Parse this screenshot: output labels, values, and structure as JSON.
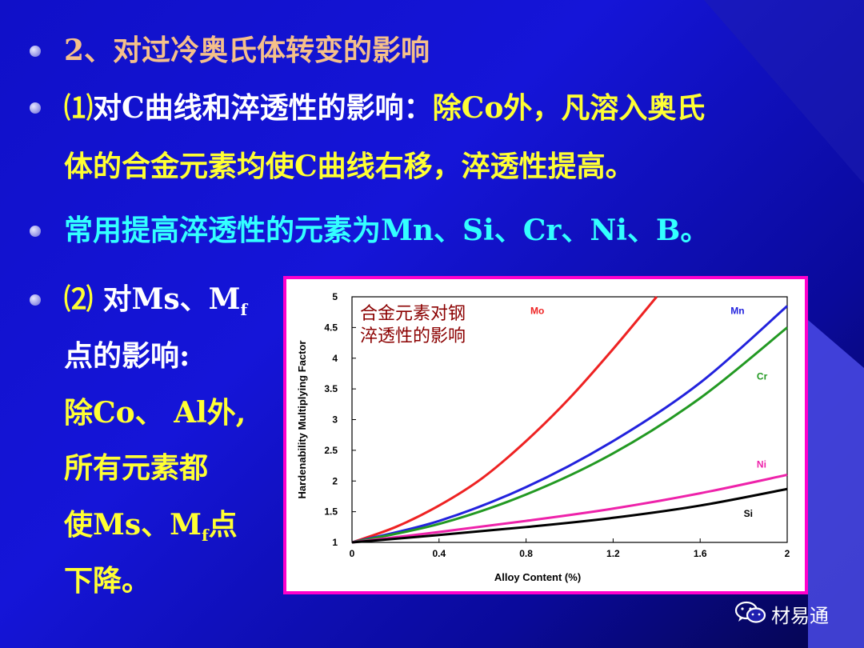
{
  "slide": {
    "heading": "2、对过冷奥氏体转变的影响",
    "p1_prefix": "⑴",
    "p1_a": "对C曲线和淬透性的影响：",
    "p1_b": "除Co外，凡溶入奥氏",
    "p1_line2": "体的合金元素均使C曲线右移，淬透性提高。",
    "p2": "常用提高淬透性的元素为Mn、Si、Cr、Ni、B。",
    "p3_prefix": "⑵",
    "p3_a": " 对Ms、M",
    "p3_sub": "f",
    "p3_l2": "点的影响:",
    "p3_l3": "除Co、 Al外,",
    "p3_l4": "所有元素都",
    "p3_l5a": "使Ms、M",
    "p3_l5sub": "f",
    "p3_l5b": "点",
    "p3_l6": "下降。"
  },
  "watermark": {
    "text": "材易通",
    "icon": "wechat-icon"
  },
  "colors": {
    "heading": "#f5c08a",
    "yellow": "#ffff33",
    "white": "#ffffff",
    "cyan": "#33ffff",
    "frame": "#ff00cc",
    "title": "#8b0000"
  },
  "chart_data": {
    "type": "line",
    "title": "合金元素对钢淬透性的影响",
    "xlabel": "Alloy Content (%)",
    "ylabel": "Hardenability Multiplying Factor",
    "xlim": [
      0,
      2
    ],
    "ylim": [
      1,
      5
    ],
    "x_ticks": [
      "0",
      "0.4",
      "0.8",
      "1.2",
      "1.6",
      "2"
    ],
    "y_ticks": [
      "1",
      "1.5",
      "2",
      "2.5",
      "3",
      "3.5",
      "4",
      "4.5",
      "5"
    ],
    "grid": false,
    "series": [
      {
        "name": "Mo",
        "color": "#ee2222",
        "x": [
          0,
          0.2,
          0.4,
          0.6,
          0.8,
          1.0,
          1.2,
          1.4
        ],
        "y": [
          1,
          1.25,
          1.6,
          2.05,
          2.65,
          3.35,
          4.15,
          5.0
        ]
      },
      {
        "name": "Mn",
        "color": "#2222dd",
        "x": [
          0,
          0.4,
          0.8,
          1.2,
          1.6,
          2.0
        ],
        "y": [
          1,
          1.35,
          1.9,
          2.65,
          3.6,
          4.85
        ]
      },
      {
        "name": "Cr",
        "color": "#229922",
        "x": [
          0,
          0.4,
          0.8,
          1.2,
          1.6,
          2.0
        ],
        "y": [
          1,
          1.3,
          1.78,
          2.45,
          3.35,
          4.5
        ]
      },
      {
        "name": "Ni",
        "color": "#ee22aa",
        "x": [
          0,
          0.4,
          0.8,
          1.2,
          1.6,
          2.0
        ],
        "y": [
          1,
          1.17,
          1.35,
          1.55,
          1.8,
          2.1
        ]
      },
      {
        "name": "Si",
        "color": "#000000",
        "x": [
          0,
          0.4,
          0.8,
          1.2,
          1.6,
          2.0
        ],
        "y": [
          1,
          1.12,
          1.25,
          1.4,
          1.6,
          1.87
        ]
      }
    ]
  }
}
